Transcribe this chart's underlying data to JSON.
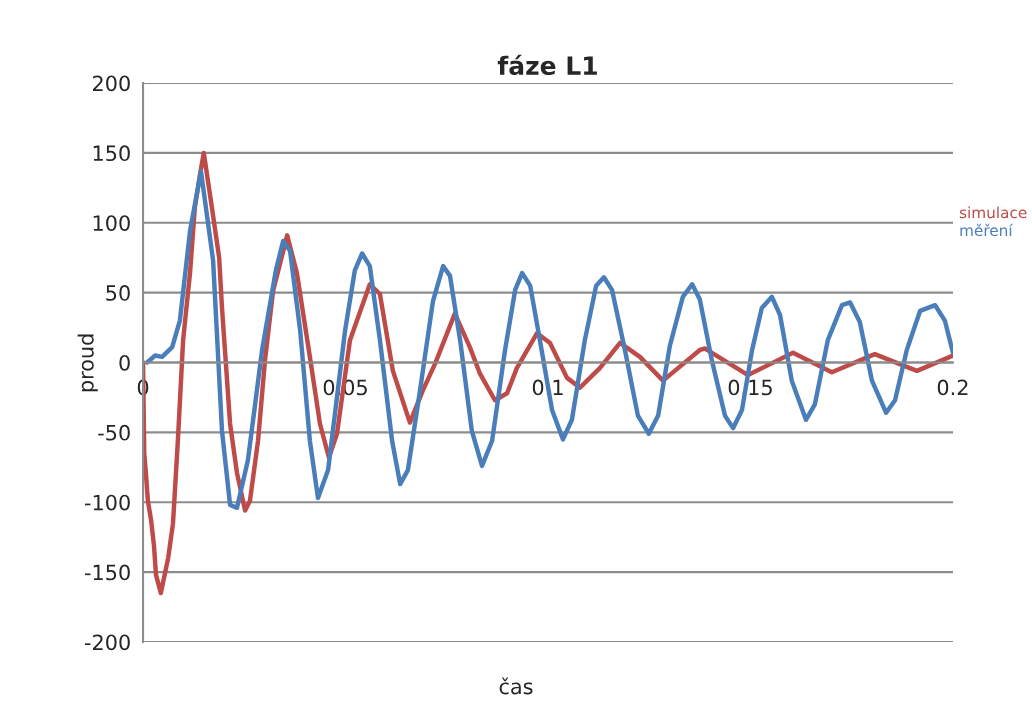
{
  "chart_data": {
    "type": "line",
    "title": "fáze L1",
    "xlabel": "čas",
    "ylabel": "proud",
    "xlim": [
      0,
      0.2
    ],
    "xticks": [
      0,
      0.05,
      0.1,
      0.15,
      0.2
    ],
    "ylim": [
      -200,
      200
    ],
    "yticks": [
      -200,
      -150,
      -100,
      -50,
      0,
      50,
      100,
      150,
      200
    ],
    "grid": "y",
    "legend": "right",
    "marker": "none",
    "line_style": "solid",
    "series": [
      {
        "name": "simulace",
        "color": "#be4b48",
        "x": [
          0,
          0.0003,
          0.0007,
          0.0012,
          0.002,
          0.0027,
          0.0032,
          0.0044,
          0.0062,
          0.0074,
          0.0086,
          0.0099,
          0.0116,
          0.0128,
          0.0141,
          0.015,
          0.017,
          0.0188,
          0.0195,
          0.0215,
          0.0232,
          0.0252,
          0.0264,
          0.0284,
          0.0301,
          0.0321,
          0.0356,
          0.038,
          0.0412,
          0.0437,
          0.0459,
          0.0479,
          0.0511,
          0.056,
          0.0585,
          0.0617,
          0.0659,
          0.0691,
          0.0721,
          0.077,
          0.0807,
          0.0832,
          0.0869,
          0.0899,
          0.0923,
          0.0973,
          0.1005,
          0.1047,
          0.1079,
          0.1128,
          0.1178,
          0.1227,
          0.1284,
          0.1375,
          0.1388,
          0.1494,
          0.1605,
          0.1701,
          0.1807,
          0.1911,
          0.2
        ],
        "values": [
          0,
          -65,
          -79,
          -99,
          -113,
          -131,
          -152,
          -165,
          -140,
          -115,
          -56,
          16,
          64,
          111,
          135,
          150,
          111,
          75,
          39,
          -44,
          -79,
          -106,
          -99,
          -56,
          1,
          51,
          91,
          64,
          4,
          -44,
          -68,
          -51,
          16,
          56,
          49,
          -6,
          -43,
          -20,
          -1,
          35,
          11,
          -8,
          -27,
          -22,
          -4,
          21,
          14,
          -11,
          -18,
          -4,
          14,
          4,
          -13,
          9,
          10,
          -9,
          7,
          -7,
          6,
          -6,
          5
        ]
      },
      {
        "name": "měření",
        "color": "#4a7ebb",
        "x": [
          0.001,
          0.003,
          0.0047,
          0.0072,
          0.0091,
          0.0116,
          0.0143,
          0.0173,
          0.0195,
          0.0215,
          0.0232,
          0.0259,
          0.0294,
          0.0328,
          0.0346,
          0.0363,
          0.0388,
          0.0412,
          0.0432,
          0.0457,
          0.0499,
          0.0523,
          0.0541,
          0.056,
          0.0585,
          0.0615,
          0.0635,
          0.0654,
          0.0684,
          0.0716,
          0.0741,
          0.0758,
          0.0783,
          0.0812,
          0.0837,
          0.0862,
          0.0894,
          0.0919,
          0.0936,
          0.0956,
          0.098,
          0.101,
          0.1037,
          0.1059,
          0.1091,
          0.1119,
          0.1138,
          0.1158,
          0.119,
          0.1222,
          0.1249,
          0.1272,
          0.1301,
          0.1333,
          0.1356,
          0.1375,
          0.1405,
          0.1437,
          0.1457,
          0.1479,
          0.1504,
          0.1528,
          0.1553,
          0.1573,
          0.1602,
          0.1637,
          0.1659,
          0.1691,
          0.1726,
          0.1746,
          0.177,
          0.18,
          0.1835,
          0.1857,
          0.1886,
          0.1919,
          0.1956,
          0.198,
          0.2
        ],
        "values": [
          0,
          5,
          4,
          11,
          30,
          94,
          137,
          73,
          -49,
          -102,
          -104,
          -70,
          9,
          66,
          87,
          80,
          23,
          -56,
          -97,
          -77,
          23,
          66,
          78,
          69,
          16,
          -56,
          -87,
          -77,
          -20,
          44,
          69,
          62,
          16,
          -49,
          -74,
          -56,
          9,
          52,
          64,
          55,
          16,
          -34,
          -55,
          -41,
          16,
          55,
          61,
          52,
          9,
          -38,
          -51,
          -38,
          12,
          47,
          56,
          45,
          1,
          -38,
          -47,
          -34,
          9,
          39,
          47,
          34,
          -13,
          -41,
          -30,
          16,
          41,
          43,
          29,
          -13,
          -36,
          -27,
          9,
          37,
          41,
          30,
          7
        ]
      }
    ]
  }
}
